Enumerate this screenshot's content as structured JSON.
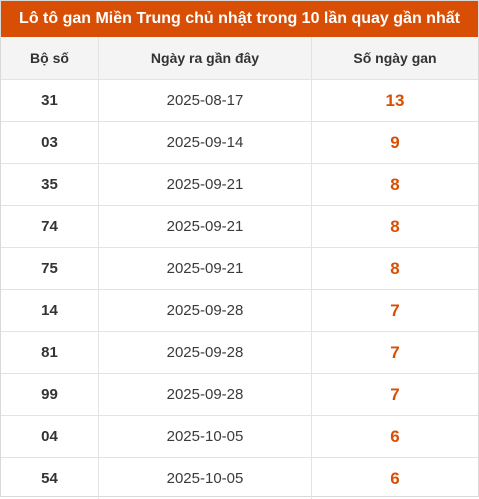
{
  "title": "Lô tô gan Miền Trung chủ nhật trong 10 lần quay gần nhất",
  "headers": {
    "number": "Bộ số",
    "date": "Ngày ra gần đây",
    "days": "Số ngày gan"
  },
  "accent_color": "#d94e05",
  "rows": [
    {
      "number": "31",
      "date": "2025-08-17",
      "days": "13"
    },
    {
      "number": "03",
      "date": "2025-09-14",
      "days": "9"
    },
    {
      "number": "35",
      "date": "2025-09-21",
      "days": "8"
    },
    {
      "number": "74",
      "date": "2025-09-21",
      "days": "8"
    },
    {
      "number": "75",
      "date": "2025-09-21",
      "days": "8"
    },
    {
      "number": "14",
      "date": "2025-09-28",
      "days": "7"
    },
    {
      "number": "81",
      "date": "2025-09-28",
      "days": "7"
    },
    {
      "number": "99",
      "date": "2025-09-28",
      "days": "7"
    },
    {
      "number": "04",
      "date": "2025-10-05",
      "days": "6"
    },
    {
      "number": "54",
      "date": "2025-10-05",
      "days": "6"
    }
  ]
}
